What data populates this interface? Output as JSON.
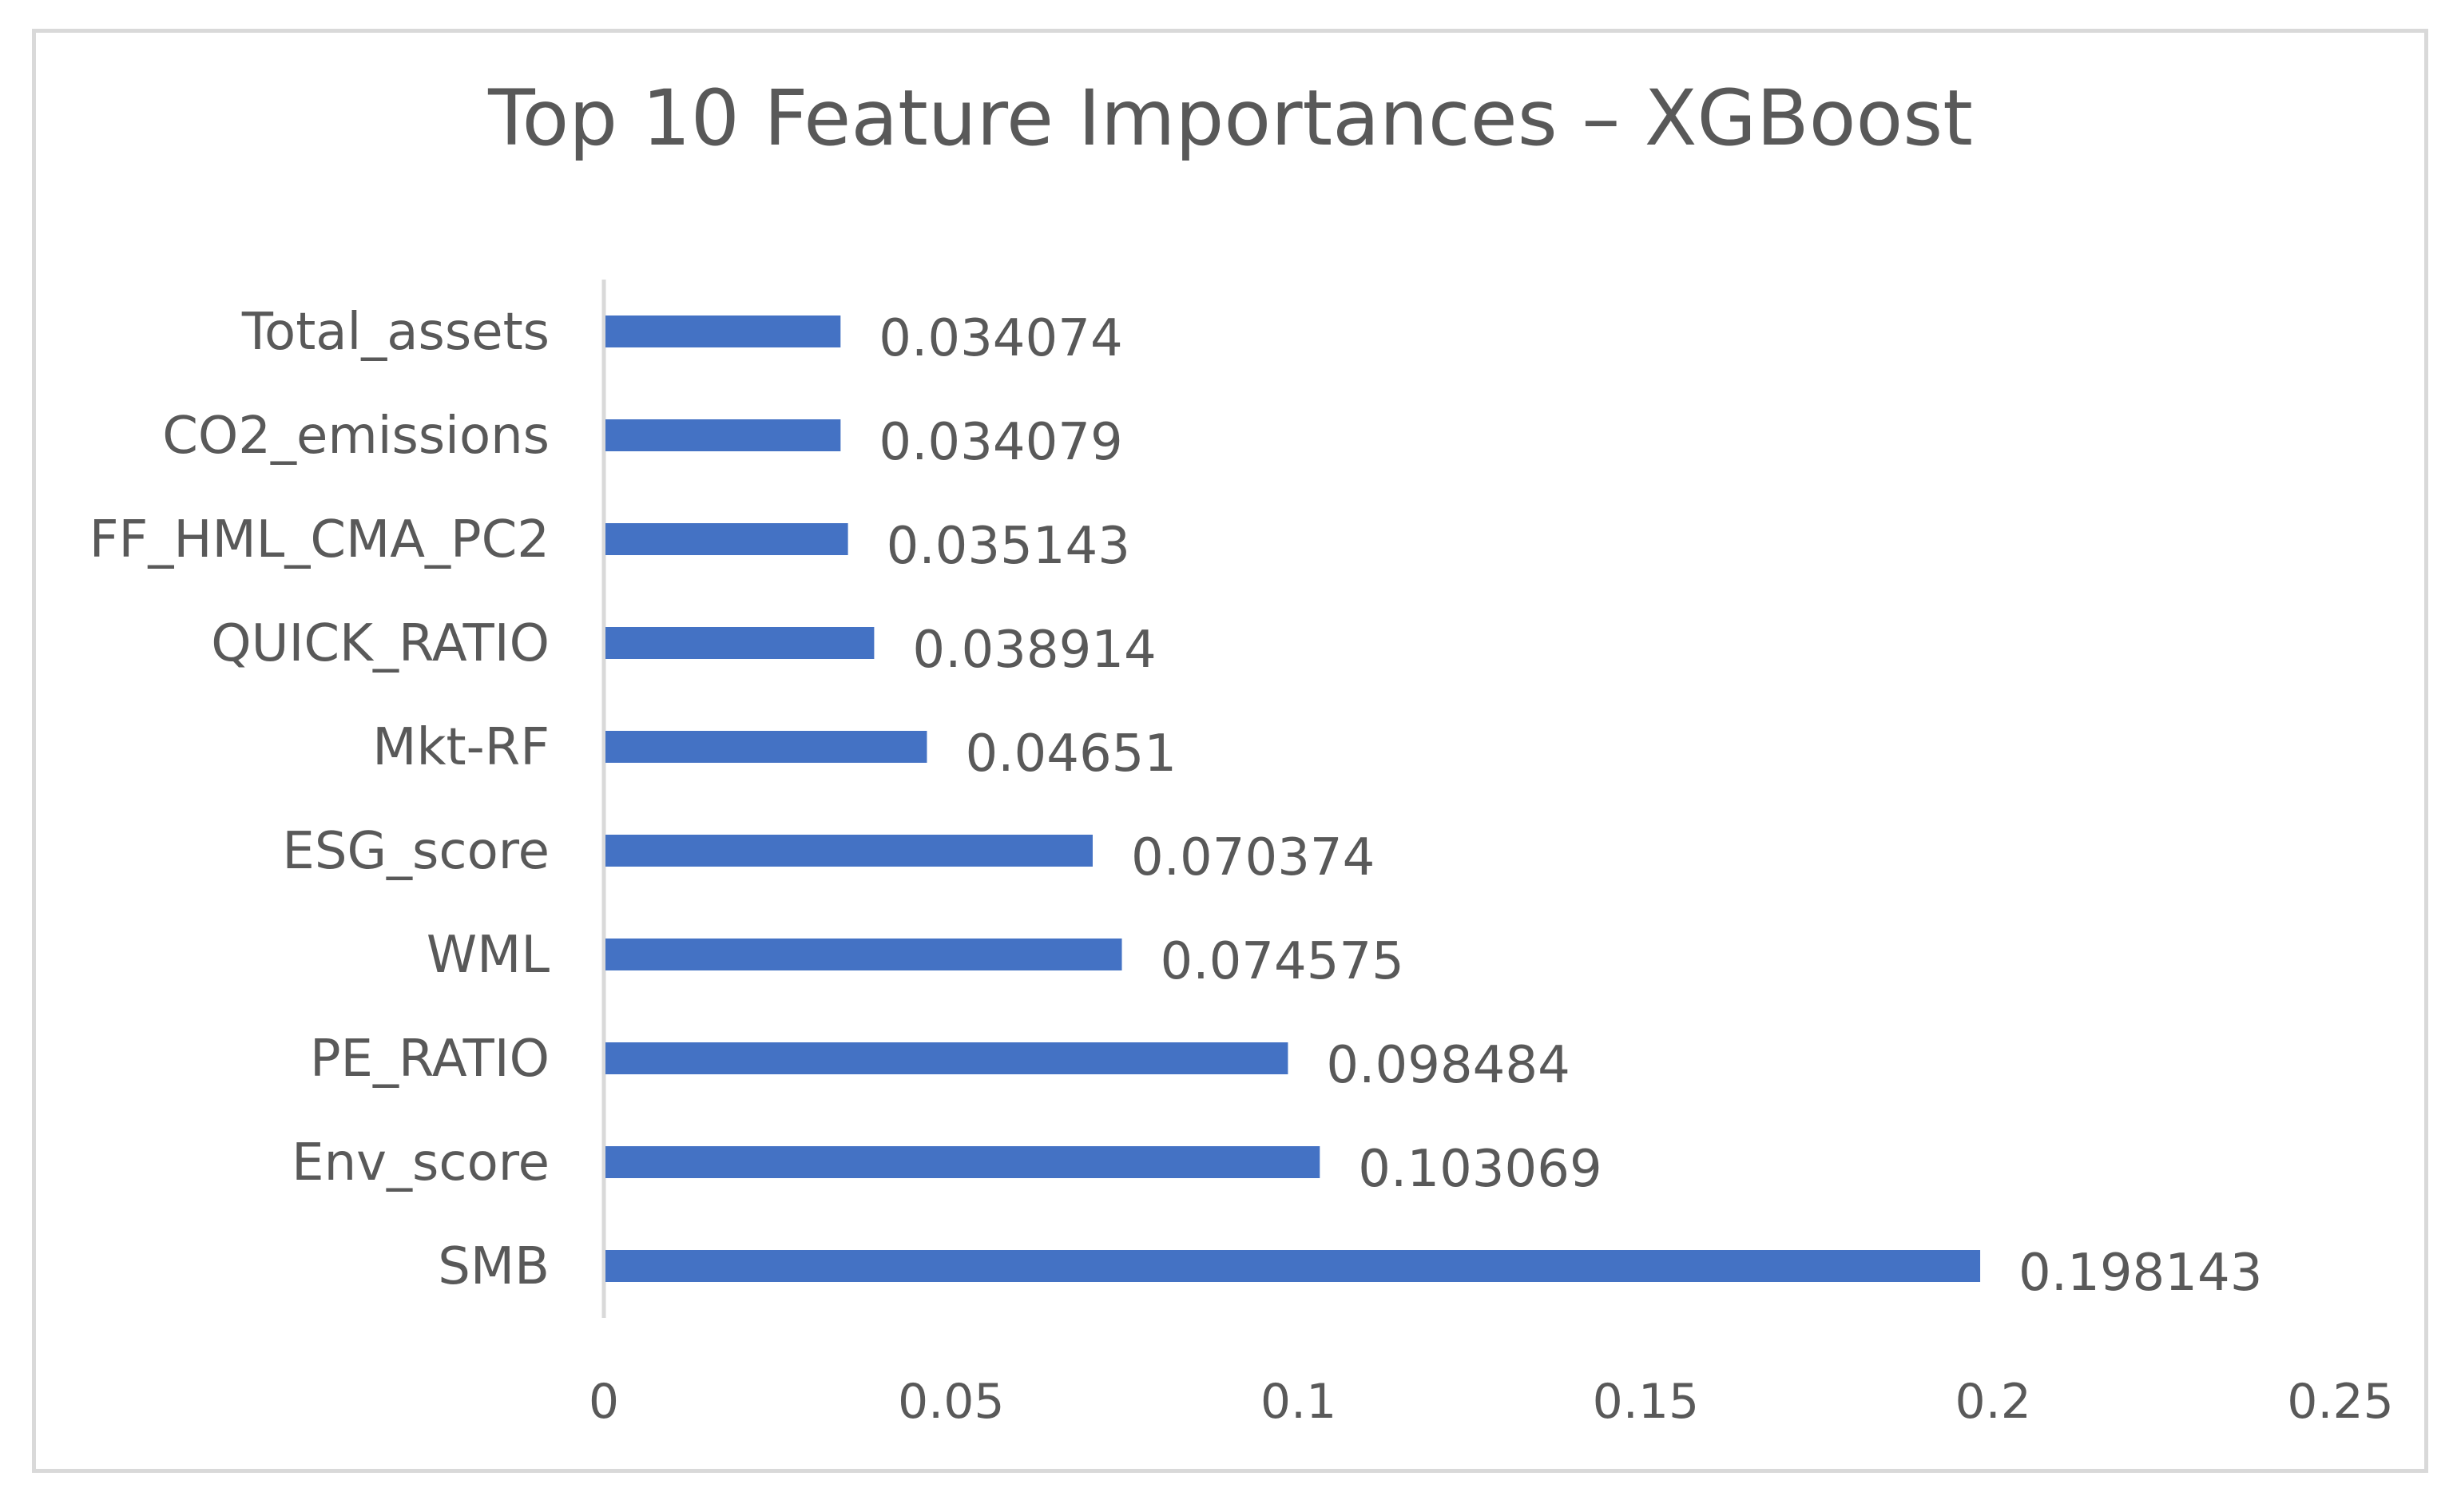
{
  "chart_data": {
    "type": "bar",
    "orientation": "horizontal",
    "title": "Top 10 Feature Importances – XGBoost",
    "categories": [
      "Total_assets",
      "CO2_emissions",
      "FF_HML_CMA_PC2",
      "QUICK_RATIO",
      "Mkt-RF",
      "ESG_score",
      "WML",
      "PE_RATIO",
      "Env_score",
      "SMB"
    ],
    "values": [
      0.034074,
      0.034079,
      0.035143,
      0.038914,
      0.04651,
      0.070374,
      0.074575,
      0.098484,
      0.103069,
      0.198143
    ],
    "data_labels": [
      "0.034074",
      "0.034079",
      "0.035143",
      "0.038914",
      "0.04651",
      "0.070374",
      "0.074575",
      "0.098484",
      "0.103069",
      "0.198143"
    ],
    "xlim": [
      0,
      0.25
    ],
    "x_ticks": [
      "0",
      "0.05",
      "0.1",
      "0.15",
      "0.2",
      "0.25"
    ],
    "xlabel": "",
    "ylabel": "",
    "grid": false,
    "legend": "none",
    "bar_color": "#4472c4"
  }
}
